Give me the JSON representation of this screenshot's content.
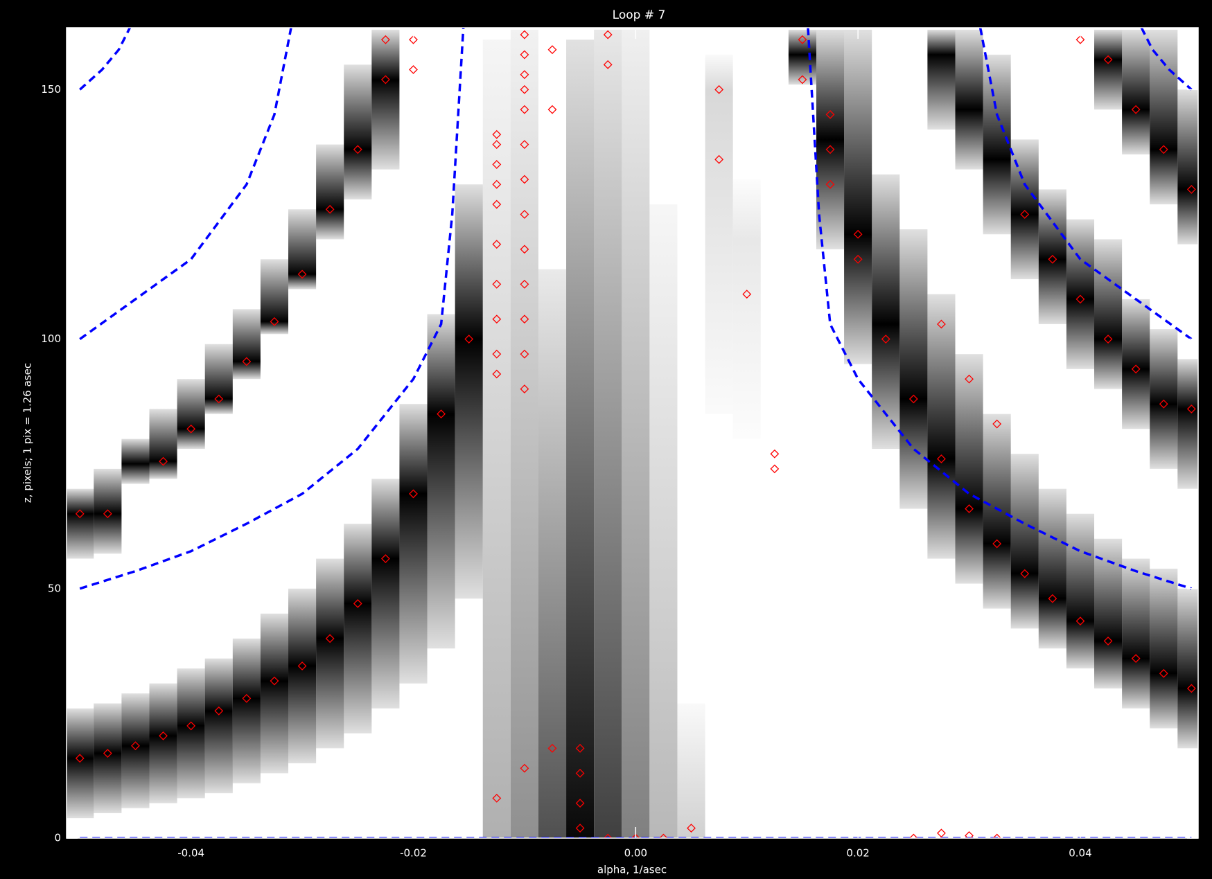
{
  "chart_data": {
    "type": "gray-bands",
    "title": "Loop #    7",
    "x_label": "alpha, 1/asec",
    "y_label": "z, pixels; 1 pix =  1.26 asec",
    "xlim": [
      -0.0512,
      0.0506
    ],
    "ylim": [
      0,
      162.4
    ],
    "xticks": [
      -0.04,
      -0.02,
      {
        "value": 0,
        "label": "0.00"
      },
      0.02,
      0.04
    ],
    "yticks": [
      0,
      50,
      100,
      150
    ],
    "band_tone": "#000000",
    "bands": [
      {
        "x": -0.05,
        "from": 4,
        "to": 26,
        "peak": 16
      },
      {
        "x": -0.0475,
        "from": 5,
        "to": 27,
        "peak": 17
      },
      {
        "x": -0.045,
        "from": 6,
        "to": 29,
        "peak": 18.5
      },
      {
        "x": -0.0425,
        "from": 7,
        "to": 31,
        "peak": 20.5
      },
      {
        "x": -0.04,
        "from": 8,
        "to": 34,
        "peak": 22.5
      },
      {
        "x": -0.0375,
        "from": 9,
        "to": 36,
        "peak": 25.5
      },
      {
        "x": -0.035,
        "from": 11,
        "to": 40,
        "peak": 28
      },
      {
        "x": -0.0325,
        "from": 13,
        "to": 45,
        "peak": 31.5
      },
      {
        "x": -0.03,
        "from": 15,
        "to": 50,
        "peak": 34.5
      },
      {
        "x": -0.0275,
        "from": 18,
        "to": 56,
        "peak": 40
      },
      {
        "x": -0.025,
        "from": 21,
        "to": 63,
        "peak": 47
      },
      {
        "x": -0.0225,
        "from": 26,
        "to": 72,
        "peak": 56
      },
      {
        "x": -0.02,
        "from": 31,
        "to": 87,
        "peak": 69
      },
      {
        "x": -0.0175,
        "from": 38,
        "to": 105,
        "peak": 85
      },
      {
        "x": -0.015,
        "from": 48,
        "to": 131,
        "peak": 100
      },
      {
        "x": -0.05,
        "from": 56,
        "to": 70,
        "peak": 65
      },
      {
        "x": -0.0475,
        "from": 57,
        "to": 74,
        "peak": 65
      },
      {
        "x": -0.045,
        "from": 71,
        "to": 80,
        "peak": 75
      },
      {
        "x": -0.0425,
        "from": 72,
        "to": 86,
        "peak": 75.5
      },
      {
        "x": -0.04,
        "from": 78,
        "to": 92,
        "peak": 82
      },
      {
        "x": -0.0375,
        "from": 85,
        "to": 99,
        "peak": 88
      },
      {
        "x": -0.035,
        "from": 92,
        "to": 106,
        "peak": 95.5
      },
      {
        "x": -0.0325,
        "from": 101,
        "to": 116,
        "peak": 103.5
      },
      {
        "x": -0.03,
        "from": 110,
        "to": 126,
        "peak": 113
      },
      {
        "x": -0.0275,
        "from": 120,
        "to": 139,
        "peak": 126
      },
      {
        "x": -0.025,
        "from": 128,
        "to": 155,
        "peak": 138
      },
      {
        "x": -0.0225,
        "from": 134,
        "to": 162,
        "peak": 152
      },
      {
        "x": -0.0125,
        "from": 0,
        "to": 160,
        "peak": 0,
        "color": "#b0b0b0"
      },
      {
        "x": -0.01,
        "from": 0,
        "to": 162,
        "peak": 0,
        "color": "#909090"
      },
      {
        "x": -0.0075,
        "from": 0,
        "to": 114,
        "peak": 0,
        "color": "#505050"
      },
      {
        "x": -0.005,
        "from": 0,
        "to": 160,
        "peak": 0,
        "color": "#080808"
      },
      {
        "x": -0.0025,
        "from": 0,
        "to": 162,
        "peak": 0,
        "color": "#404040"
      },
      {
        "x": 0,
        "from": 0,
        "to": 162,
        "peak": 0,
        "color": "#808080"
      },
      {
        "x": 0.0025,
        "from": 0,
        "to": 127,
        "peak": 0,
        "color": "#b8b8b8"
      },
      {
        "x": 0.005,
        "from": 0,
        "to": 27,
        "peak": 0,
        "color": "#d0d0d0"
      },
      {
        "x": 0.0075,
        "from": 85,
        "to": 157,
        "peak": 150,
        "color": "#d8d8d8"
      },
      {
        "x": 0.01,
        "from": 80,
        "to": 132,
        "peak": 120,
        "color": "#e8e8e8"
      },
      {
        "x": 0.015,
        "from": 151,
        "to": 162,
        "peak": 157
      },
      {
        "x": 0.0175,
        "from": 118,
        "to": 162,
        "peak": 140
      },
      {
        "x": 0.02,
        "from": 95,
        "to": 162,
        "peak": 121
      },
      {
        "x": 0.0225,
        "from": 78,
        "to": 133,
        "peak": 103
      },
      {
        "x": 0.025,
        "from": 66,
        "to": 122,
        "peak": 88
      },
      {
        "x": 0.0275,
        "from": 56,
        "to": 109,
        "peak": 76
      },
      {
        "x": 0.03,
        "from": 51,
        "to": 97,
        "peak": 66
      },
      {
        "x": 0.0325,
        "from": 46,
        "to": 85,
        "peak": 59
      },
      {
        "x": 0.035,
        "from": 42,
        "to": 77,
        "peak": 53
      },
      {
        "x": 0.0375,
        "from": 38,
        "to": 70,
        "peak": 48
      },
      {
        "x": 0.04,
        "from": 34,
        "to": 65,
        "peak": 43.5
      },
      {
        "x": 0.0425,
        "from": 30,
        "to": 60,
        "peak": 39.5
      },
      {
        "x": 0.045,
        "from": 26,
        "to": 56,
        "peak": 36
      },
      {
        "x": 0.0475,
        "from": 22,
        "to": 54,
        "peak": 33
      },
      {
        "x": 0.05,
        "from": 18,
        "to": 50,
        "peak": 30
      },
      {
        "x": 0.0275,
        "from": 142,
        "to": 162,
        "peak": 157
      },
      {
        "x": 0.03,
        "from": 134,
        "to": 162,
        "peak": 146
      },
      {
        "x": 0.0325,
        "from": 121,
        "to": 157,
        "peak": 136
      },
      {
        "x": 0.035,
        "from": 112,
        "to": 140,
        "peak": 125
      },
      {
        "x": 0.0375,
        "from": 103,
        "to": 130,
        "peak": 116
      },
      {
        "x": 0.04,
        "from": 94,
        "to": 124,
        "peak": 108
      },
      {
        "x": 0.0425,
        "from": 90,
        "to": 120,
        "peak": 100
      },
      {
        "x": 0.045,
        "from": 82,
        "to": 108,
        "peak": 94
      },
      {
        "x": 0.0475,
        "from": 74,
        "to": 102,
        "peak": 87
      },
      {
        "x": 0.05,
        "from": 70,
        "to": 96,
        "peak": 86
      },
      {
        "x": 0.0425,
        "from": 146,
        "to": 162,
        "peak": 156
      },
      {
        "x": 0.045,
        "from": 137,
        "to": 162,
        "peak": 146
      },
      {
        "x": 0.0475,
        "from": 127,
        "to": 162,
        "peak": 138
      },
      {
        "x": 0.05,
        "from": 119,
        "to": 150,
        "peak": 130
      }
    ],
    "points": {
      "color": "#ff0000",
      "x": [
        -0.05,
        -0.0475,
        -0.045,
        -0.0425,
        -0.04,
        -0.0375,
        -0.035,
        -0.0325,
        -0.03,
        -0.0275,
        -0.025,
        -0.0225,
        -0.02,
        -0.0175,
        -0.015,
        -0.05,
        -0.0475,
        -0.0425,
        -0.04,
        -0.0375,
        -0.035,
        -0.0325,
        -0.03,
        -0.0275,
        -0.025,
        -0.0225,
        -0.0225,
        -0.02,
        -0.02,
        -0.0125,
        -0.0125,
        -0.0125,
        -0.0125,
        -0.0125,
        -0.0125,
        -0.0125,
        -0.0125,
        -0.0125,
        -0.0125,
        -0.0125,
        -0.01,
        -0.01,
        -0.01,
        -0.01,
        -0.01,
        -0.01,
        -0.01,
        -0.01,
        -0.01,
        -0.01,
        -0.01,
        -0.01,
        -0.01,
        -0.01,
        -0.0075,
        -0.0075,
        -0.0075,
        -0.005,
        -0.005,
        -0.005,
        -0.005,
        -0.0025,
        -0.0025,
        -0.0025,
        0,
        0.0025,
        0.005,
        0.0075,
        0.0075,
        0.01,
        0.0125,
        0.0125,
        0.015,
        0.015,
        0.0175,
        0.0175,
        0.0175,
        0.02,
        0.02,
        0.0225,
        0.025,
        0.0275,
        0.03,
        0.0325,
        0.035,
        0.0375,
        0.04,
        0.0425,
        0.045,
        0.0475,
        0.05,
        0.0275,
        0.03,
        0.0325,
        0.035,
        0.0375,
        0.04,
        0.0425,
        0.045,
        0.0475,
        0.05,
        0.04,
        0.0425,
        0.045,
        0.0475,
        0.05,
        0.025,
        0.0275,
        0.03,
        0.0325
      ],
      "y": [
        16,
        17,
        18.5,
        20.5,
        22.5,
        25.5,
        28,
        31.5,
        34.5,
        40,
        47,
        56,
        69,
        85,
        100,
        65,
        65,
        75.5,
        82,
        88,
        95.5,
        103.5,
        113,
        126,
        138,
        152,
        160,
        154,
        160,
        8,
        93,
        97,
        104,
        111,
        119,
        127,
        131,
        135,
        139,
        141,
        14,
        90,
        97,
        104,
        111,
        118,
        125,
        132,
        139,
        146,
        150,
        153,
        157,
        161,
        18,
        146,
        158,
        2,
        7,
        13,
        18,
        0,
        155,
        161,
        0,
        0,
        2,
        150,
        136,
        109,
        77,
        74,
        152,
        160,
        131,
        138,
        145,
        116,
        121,
        100,
        88,
        76,
        66,
        59,
        53,
        48,
        43.5,
        39.5,
        36,
        33,
        30,
        103,
        92,
        83,
        125,
        116,
        108,
        100,
        94,
        87,
        86,
        160,
        156,
        146,
        138,
        130,
        0,
        1,
        0.5,
        0
      ]
    },
    "curves": {
      "color": "#0000ff",
      "lines": [
        {
          "x": [
            -0.05,
            -0.048,
            -0.0465,
            -0.0455
          ],
          "y": [
            150,
            154,
            158,
            162.4
          ]
        },
        {
          "x": [
            -0.05,
            -0.045,
            -0.04,
            -0.035,
            -0.0325,
            -0.031
          ],
          "y": [
            100,
            108,
            116,
            131,
            145,
            162.4
          ]
        },
        {
          "x": [
            -0.05,
            -0.045,
            -0.04,
            -0.035,
            -0.03,
            -0.025,
            -0.02,
            -0.0175,
            -0.0165,
            -0.0155
          ],
          "y": [
            50,
            53.5,
            57.5,
            63,
            69,
            78,
            92,
            103,
            125,
            162.4
          ]
        },
        {
          "x": [
            0.0155,
            0.0165,
            0.0175,
            0.02,
            0.025,
            0.03,
            0.035,
            0.04,
            0.045,
            0.05
          ],
          "y": [
            162.4,
            125,
            103,
            92,
            78,
            69,
            63,
            57.5,
            53.5,
            50
          ]
        },
        {
          "x": [
            0.031,
            0.0325,
            0.035,
            0.04,
            0.045,
            0.05
          ],
          "y": [
            162.4,
            145,
            131,
            116,
            108,
            100
          ]
        },
        {
          "x": [
            0.0455,
            0.0465,
            0.048,
            0.05
          ],
          "y": [
            162.4,
            158,
            154,
            150
          ]
        },
        {
          "x": [
            -0.05,
            0.05
          ],
          "y": [
            0,
            0
          ]
        }
      ]
    }
  }
}
